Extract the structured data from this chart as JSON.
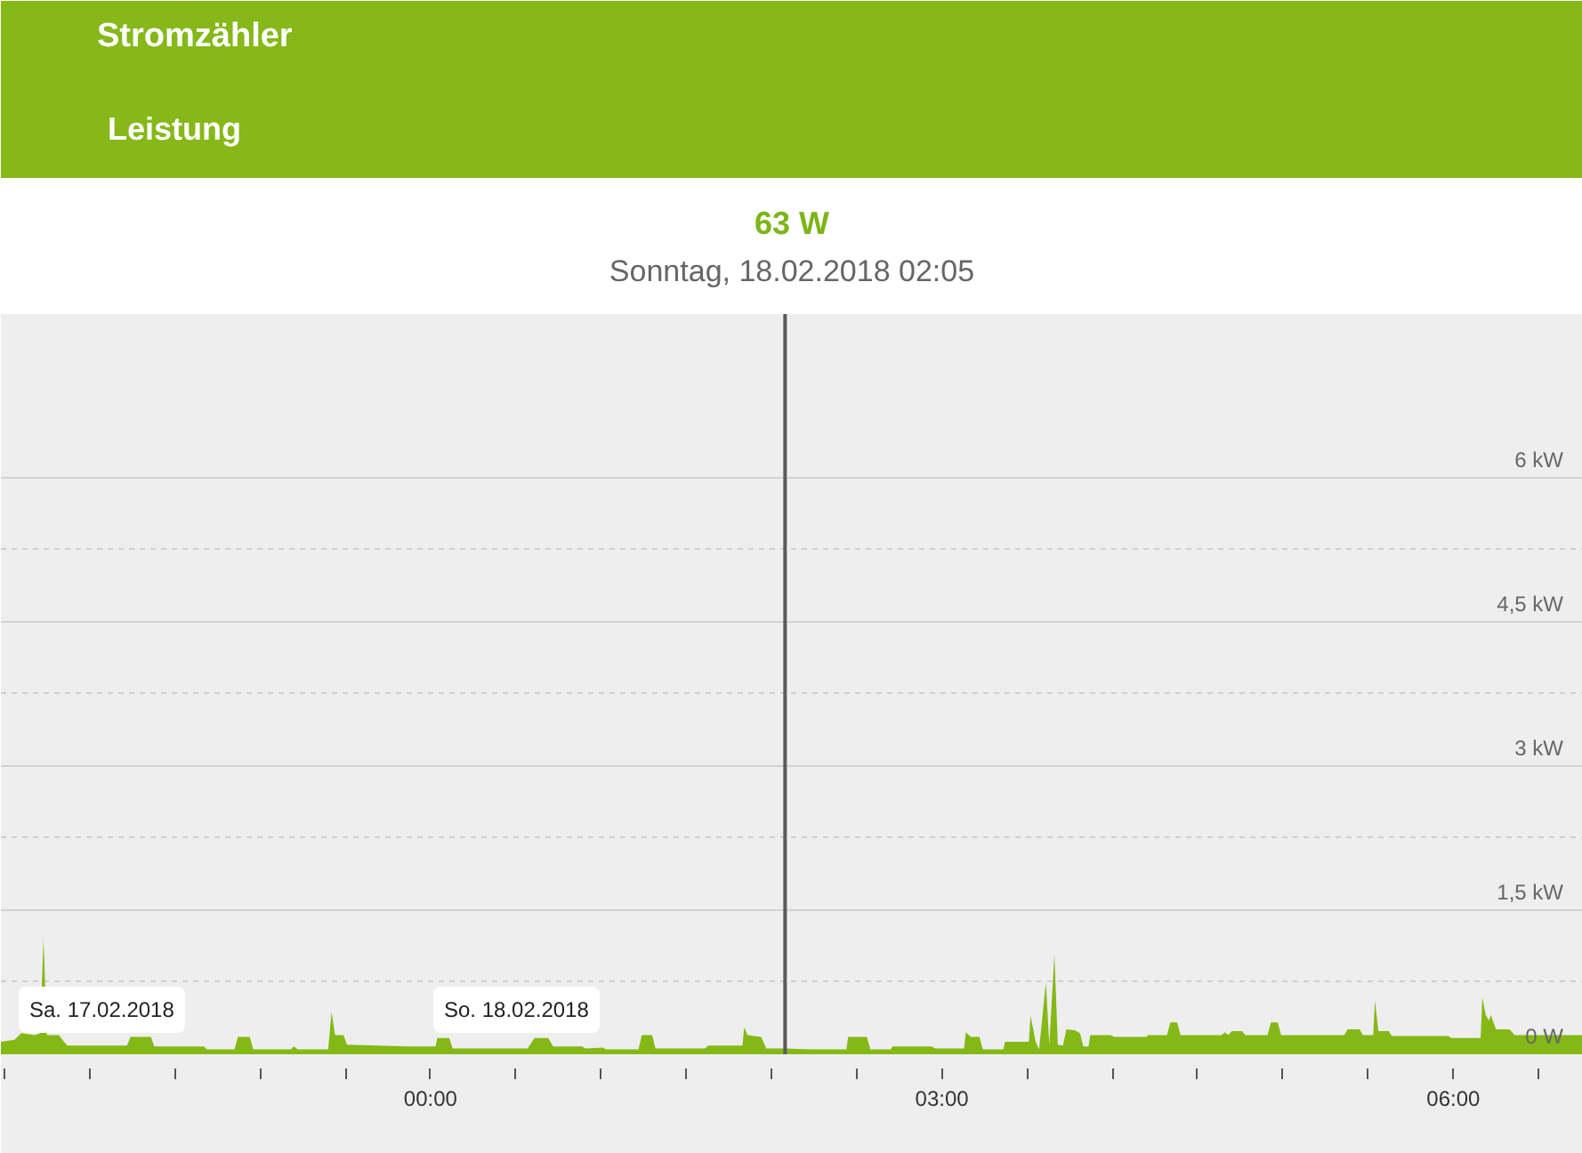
{
  "chart_data": {
    "type": "area",
    "title": "Stromzähler",
    "subtitle": "Leistung",
    "annotations": [
      "63 W",
      "Sonntag, 18.02.2018 02:05",
      "Sa. 17.02.2018",
      "So. 18.02.2018"
    ],
    "x": [
      -2.52,
      -2.44,
      -2.4,
      -2.32,
      -2.29,
      -2.27,
      -2.25,
      -2.18,
      -2.15,
      -2.13,
      -1.78,
      -1.76,
      -1.64,
      -1.62,
      -1.33,
      -1.31,
      -1.15,
      -1.13,
      -1.06,
      -1.04,
      -0.82,
      -0.8,
      -0.78,
      -0.6,
      -0.58,
      -0.56,
      -0.51,
      -0.49,
      -0.12,
      0.03,
      0.04,
      0.11,
      0.13,
      0.57,
      0.61,
      0.69,
      0.72,
      0.89,
      0.91,
      1.01,
      1.03,
      1.22,
      1.24,
      1.3,
      1.32,
      1.61,
      1.63,
      1.83,
      1.84,
      1.86,
      1.94,
      1.97,
      2.08,
      2.23,
      2.44,
      2.45,
      2.56,
      2.58,
      2.7,
      2.71,
      2.94,
      2.96,
      3.13,
      3.14,
      3.17,
      3.22,
      3.24,
      3.36,
      3.37,
      3.51,
      3.52,
      3.55,
      3.57,
      3.61,
      3.63,
      3.66,
      3.68,
      3.71,
      3.73,
      3.78,
      3.81,
      3.83,
      3.86,
      3.87,
      3.99,
      4.01,
      4.2,
      4.21,
      4.32,
      4.34,
      4.38,
      4.4,
      4.64,
      4.66,
      4.68,
      4.7,
      4.76,
      4.78,
      4.91,
      4.93,
      4.97,
      4.99,
      5.36,
      5.38,
      5.45,
      5.47,
      5.53,
      5.54,
      5.56,
      5.62,
      5.64,
      5.97,
      5.99,
      6.16,
      6.17,
      6.19,
      6.21,
      6.22,
      6.25,
      6.33,
      6.36,
      6.76
    ],
    "values": [
      0.13,
      0.15,
      0.22,
      0.2,
      0.22,
      1.2,
      0.2,
      0.2,
      0.13,
      0.09,
      0.09,
      0.18,
      0.18,
      0.08,
      0.08,
      0.05,
      0.05,
      0.18,
      0.18,
      0.05,
      0.05,
      0.08,
      0.05,
      0.05,
      0.44,
      0.2,
      0.2,
      0.1,
      0.08,
      0.08,
      0.17,
      0.17,
      0.06,
      0.06,
      0.17,
      0.17,
      0.08,
      0.08,
      0.06,
      0.07,
      0.05,
      0.05,
      0.2,
      0.2,
      0.06,
      0.06,
      0.09,
      0.09,
      0.28,
      0.2,
      0.18,
      0.06,
      0.06,
      0.05,
      0.05,
      0.18,
      0.18,
      0.05,
      0.05,
      0.08,
      0.08,
      0.06,
      0.06,
      0.23,
      0.18,
      0.18,
      0.05,
      0.05,
      0.13,
      0.13,
      0.4,
      0.13,
      0.05,
      0.75,
      0.1,
      1.04,
      0.1,
      0.09,
      0.26,
      0.25,
      0.22,
      0.08,
      0.08,
      0.2,
      0.2,
      0.18,
      0.18,
      0.2,
      0.2,
      0.33,
      0.33,
      0.2,
      0.2,
      0.23,
      0.2,
      0.24,
      0.24,
      0.2,
      0.2,
      0.33,
      0.33,
      0.2,
      0.2,
      0.26,
      0.26,
      0.2,
      0.2,
      0.56,
      0.24,
      0.24,
      0.19,
      0.19,
      0.17,
      0.17,
      0.59,
      0.41,
      0.35,
      0.41,
      0.26,
      0.26,
      0.2,
      0.2
    ],
    "color": "#84b816",
    "xlim": [
      -2.52,
      6.76
    ],
    "xticks": [
      {
        "value": -2.5,
        "label": null
      },
      {
        "value": -2,
        "label": null
      },
      {
        "value": -1.5,
        "label": null
      },
      {
        "value": -1,
        "label": null
      },
      {
        "value": -0.5,
        "label": null
      },
      {
        "value": 0,
        "label": "00:00"
      },
      {
        "value": 0.5,
        "label": null
      },
      {
        "value": 1,
        "label": null
      },
      {
        "value": 1.5,
        "label": null
      },
      {
        "value": 2,
        "label": null
      },
      {
        "value": 2.5,
        "label": null
      },
      {
        "value": 3,
        "label": "03:00"
      },
      {
        "value": 3.5,
        "label": null
      },
      {
        "value": 4,
        "label": null
      },
      {
        "value": 4.5,
        "label": null
      },
      {
        "value": 5,
        "label": null
      },
      {
        "value": 5.5,
        "label": null
      },
      {
        "value": 6,
        "label": "06:00"
      },
      {
        "value": 6.5,
        "label": null
      }
    ],
    "ylim": [
      0,
      7.7
    ],
    "yticks": [
      {
        "value": 0,
        "label": "0 W"
      },
      {
        "value": 0.75,
        "label": null
      },
      {
        "value": 1.5,
        "label": "1,5 kW"
      },
      {
        "value": 2.25,
        "label": null
      },
      {
        "value": 3,
        "label": "3 kW"
      },
      {
        "value": 3.75,
        "label": null
      },
      {
        "value": 4.5,
        "label": "4,5 kW"
      },
      {
        "value": 5.25,
        "label": null
      },
      {
        "value": 6,
        "label": "6 kW"
      }
    ],
    "grid": "y",
    "ref_lines": [
      {
        "axis": "x",
        "value": 2.08,
        "color": "#5a5a5a"
      }
    ]
  }
}
